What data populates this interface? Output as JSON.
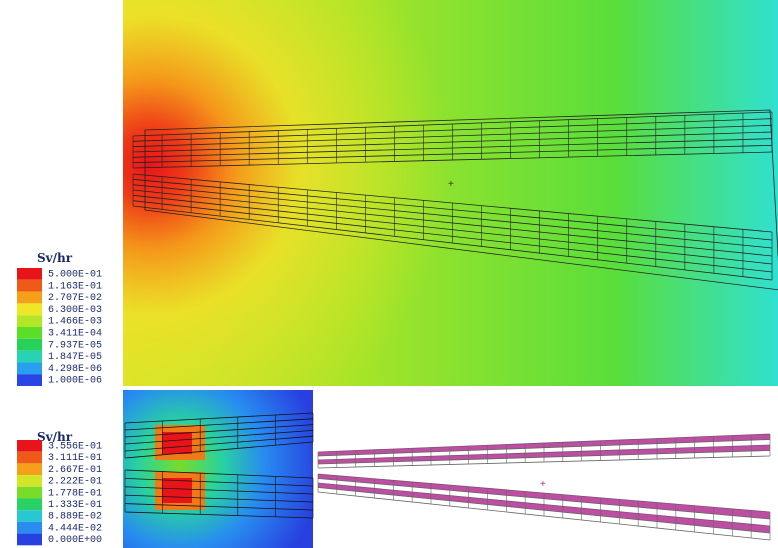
{
  "legends": [
    {
      "unit": "Sv/hr",
      "entries": [
        {
          "label": "5.000E-01",
          "color": "#e8141a"
        },
        {
          "label": "1.163E-01",
          "color": "#f05a18"
        },
        {
          "label": "2.707E-02",
          "color": "#f5a01a"
        },
        {
          "label": "6.300E-03",
          "color": "#f0e628"
        },
        {
          "label": "1.466E-03",
          "color": "#b4e628"
        },
        {
          "label": "3.411E-04",
          "color": "#5ade28"
        },
        {
          "label": "7.937E-05",
          "color": "#28d25a"
        },
        {
          "label": "1.847E-05",
          "color": "#28d2b4"
        },
        {
          "label": "4.298E-06",
          "color": "#28a0f0"
        },
        {
          "label": "1.000E-06",
          "color": "#2846e6"
        }
      ]
    },
    {
      "unit": "Sv/hr",
      "entries": [
        {
          "label": "3.556E-01",
          "color": "#e8141a"
        },
        {
          "label": "3.111E-01",
          "color": "#f05a18"
        },
        {
          "label": "2.667E-01",
          "color": "#f5a01a"
        },
        {
          "label": "2.222E-01",
          "color": "#d2e628"
        },
        {
          "label": "1.778E-01",
          "color": "#78dc28"
        },
        {
          "label": "1.333E-01",
          "color": "#28d264"
        },
        {
          "label": "8.889E-02",
          "color": "#28c8d2"
        },
        {
          "label": "4.444E-02",
          "color": "#288cf0"
        },
        {
          "label": "0.000E+00",
          "color": "#2840e0"
        }
      ]
    }
  ]
}
